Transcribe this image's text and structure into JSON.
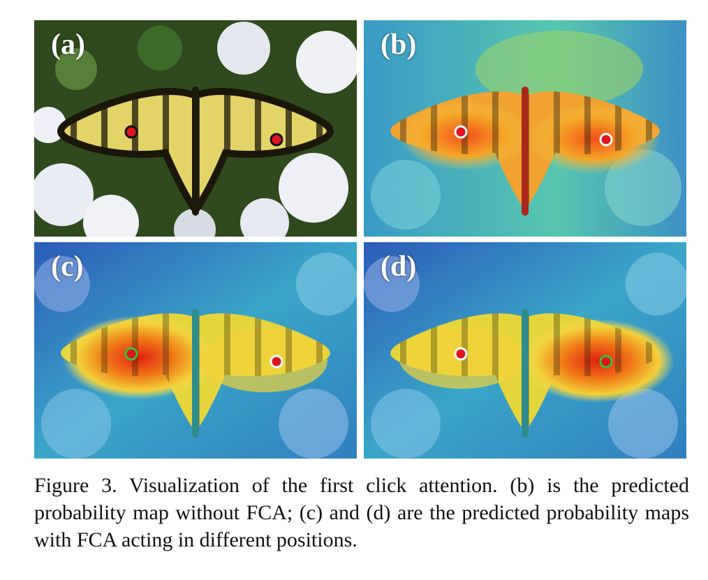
{
  "panels": [
    {
      "label": "(a)",
      "view": "original image with two red clicks"
    },
    {
      "label": "(b)",
      "view": "probability map without FCA"
    },
    {
      "label": "(c)",
      "view": "probability map with FCA acting on left click"
    },
    {
      "label": "(d)",
      "view": "probability map with FCA acting on right click"
    }
  ],
  "caption": "Figure 3. Visualization of the first click attention. (b) is the predicted probability map without FCA; (c) and (d) are the predicted probability maps with FCA acting in different positions.",
  "colors": {
    "click_red": "#e0141e",
    "fca_ring": "#36c234",
    "click_outline_a": "#111111",
    "click_outline_b": "#ffffff"
  }
}
